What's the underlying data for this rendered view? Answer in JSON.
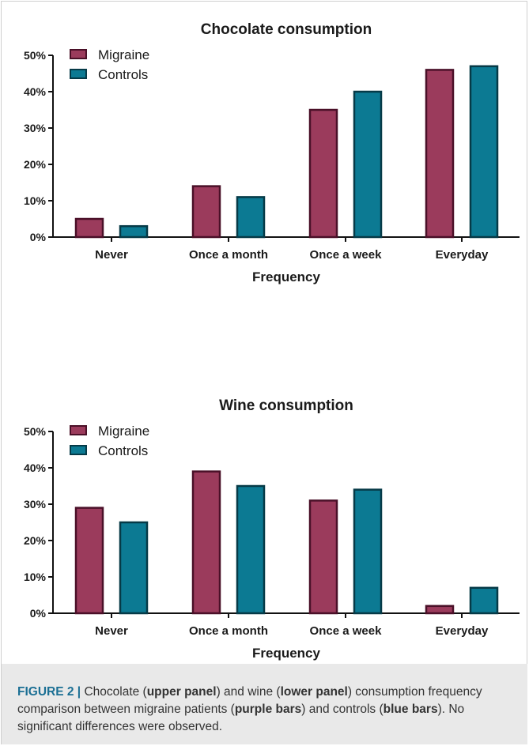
{
  "colors": {
    "migraine": "#9b3b5c",
    "migraine_edge": "#4a1028",
    "controls": "#0c7a93",
    "controls_edge": "#063a47",
    "caption_accent": "#1b6f94"
  },
  "chart_data": [
    {
      "type": "bar",
      "title": "Chocolate consumption",
      "xlabel": "Frequency",
      "ylabel": "",
      "ylim": [
        0,
        50
      ],
      "yticks": [
        "0%",
        "10%",
        "20%",
        "30%",
        "40%",
        "50%"
      ],
      "categories": [
        "Never",
        "Once a month",
        "Once a week",
        "Everyday"
      ],
      "series": [
        {
          "name": "Migraine",
          "values": [
            5,
            14,
            35,
            46
          ]
        },
        {
          "name": "Controls",
          "values": [
            3,
            11,
            40,
            47
          ]
        }
      ],
      "legend": "top-left",
      "grid": false
    },
    {
      "type": "bar",
      "title": "Wine consumption",
      "xlabel": "Frequency",
      "ylabel": "",
      "ylim": [
        0,
        50
      ],
      "yticks": [
        "0%",
        "10%",
        "20%",
        "30%",
        "40%",
        "50%"
      ],
      "categories": [
        "Never",
        "Once a month",
        "Once a week",
        "Everyday"
      ],
      "series": [
        {
          "name": "Migraine",
          "values": [
            29,
            39,
            31,
            2
          ]
        },
        {
          "name": "Controls",
          "values": [
            25,
            35,
            34,
            7
          ]
        }
      ],
      "legend": "top-left",
      "grid": false
    }
  ],
  "caption": {
    "label": "FIGURE 2 |",
    "t1": " Chocolate (",
    "b1": "upper panel",
    "t2": ") and wine (",
    "b2": "lower panel",
    "t3": ") consumption frequency comparison between migraine patients (",
    "b3": "purple bars",
    "t4": ") and controls (",
    "b4": "blue bars",
    "t5": "). No significant differences were observed."
  }
}
